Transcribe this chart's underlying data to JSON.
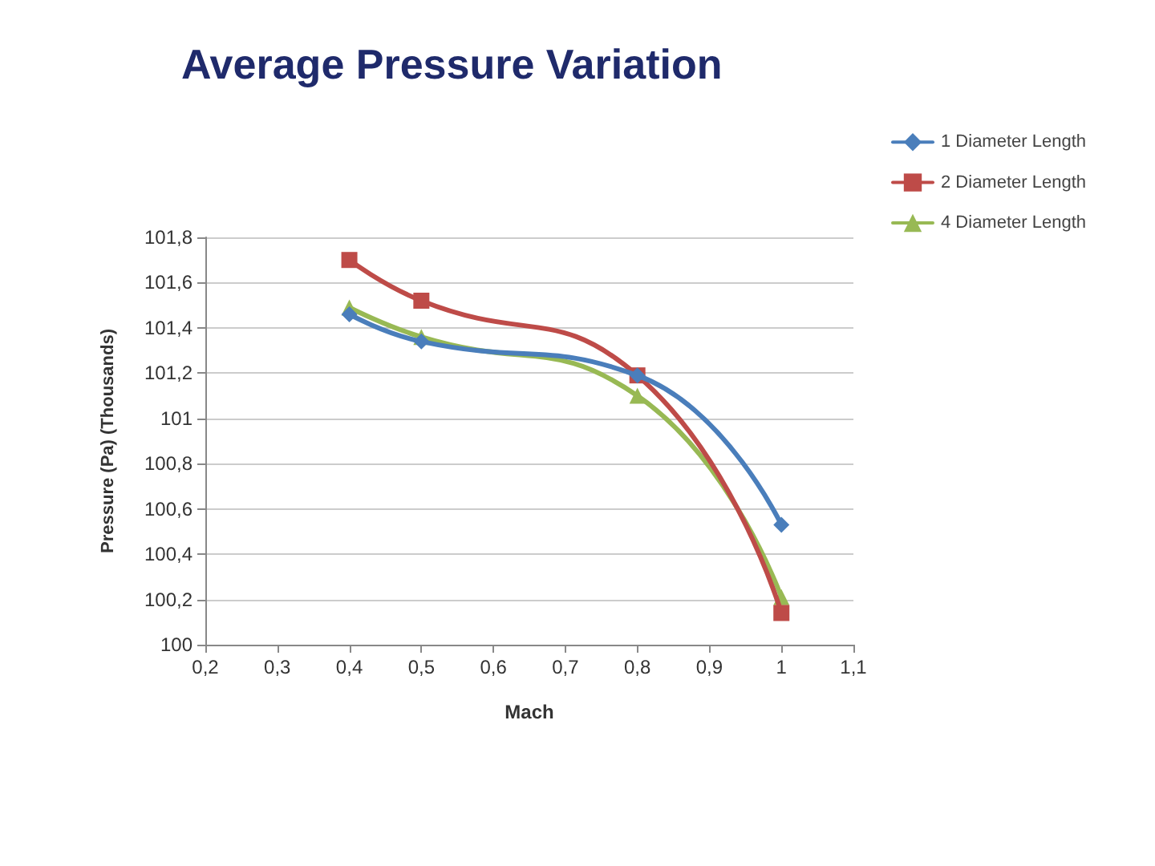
{
  "chart_data": {
    "type": "line",
    "title": "Average Pressure Variation",
    "xlabel": "Mach",
    "ylabel": "Pressure (Pa) (Thousands)",
    "x": [
      0.4,
      0.5,
      0.8,
      1
    ],
    "series": [
      {
        "name": "1 Diameter Length",
        "color": "#4a7ebb",
        "marker": "diamond",
        "values": [
          101.46,
          101.34,
          101.19,
          100.53
        ]
      },
      {
        "name": "2 Diameter Length",
        "color": "#be4b48",
        "marker": "square",
        "values": [
          101.7,
          101.52,
          101.19,
          100.14
        ]
      },
      {
        "name": "4 Diameter Length",
        "color": "#98b954",
        "marker": "triangle",
        "values": [
          101.49,
          101.36,
          101.1,
          100.21
        ]
      }
    ],
    "xlim": [
      0.2,
      1.1
    ],
    "xticks": [
      {
        "value": 0.2,
        "label": "0,2"
      },
      {
        "value": 0.3,
        "label": "0,3"
      },
      {
        "value": 0.4,
        "label": "0,4"
      },
      {
        "value": 0.5,
        "label": "0,5"
      },
      {
        "value": 0.6,
        "label": "0,6"
      },
      {
        "value": 0.7,
        "label": "0,7"
      },
      {
        "value": 0.8,
        "label": "0,8"
      },
      {
        "value": 0.9,
        "label": "0,9"
      },
      {
        "value": 1,
        "label": "1"
      },
      {
        "value": 1.1,
        "label": "1,1"
      }
    ],
    "ylim": [
      100,
      101.8
    ],
    "yticks": [
      {
        "value": 100,
        "label": "100"
      },
      {
        "value": 100.2,
        "label": "100,2"
      },
      {
        "value": 100.4,
        "label": "100,4"
      },
      {
        "value": 100.6,
        "label": "100,6"
      },
      {
        "value": 100.8,
        "label": "100,8"
      },
      {
        "value": 101,
        "label": "101"
      },
      {
        "value": 101.2,
        "label": "101,2"
      },
      {
        "value": 101.4,
        "label": "101,4"
      },
      {
        "value": 101.6,
        "label": "101,6"
      },
      {
        "value": 101.8,
        "label": "101,8"
      }
    ],
    "grid": "y",
    "legend": "top right"
  }
}
